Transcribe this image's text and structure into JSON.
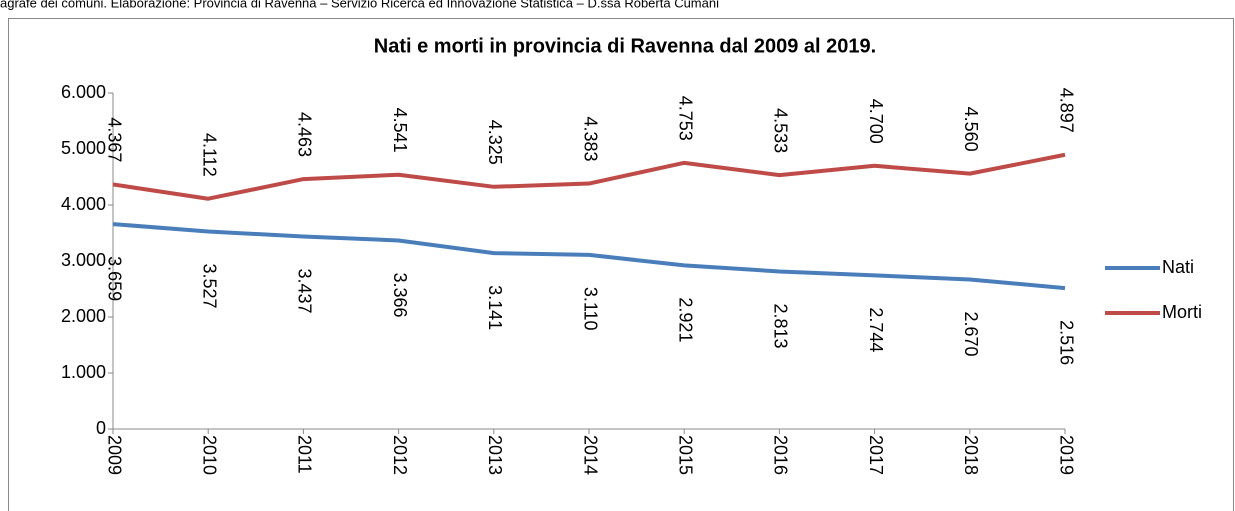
{
  "chart_data": {
    "type": "line",
    "source": "agrafe dei comuni. Elaborazione: Provincia di Ravenna – Servizio Ricerca ed Innovazione Statistica – D.ssa Roberta Cumani",
    "title": "Nati e morti in provincia di Ravenna dal 2009 al 2019.",
    "categories": [
      "2009",
      "2010",
      "2011",
      "2012",
      "2013",
      "2014",
      "2015",
      "2016",
      "2017",
      "2018",
      "2019"
    ],
    "series": [
      {
        "name": "Nati",
        "color": "#4a7ebb",
        "values": [
          3659,
          3527,
          3437,
          3366,
          3141,
          3110,
          2921,
          2813,
          2744,
          2670,
          2516
        ],
        "value_labels": [
          "3.659",
          "3.527",
          "3.437",
          "3.366",
          "3.141",
          "3.110",
          "2.921",
          "2.813",
          "2.744",
          "2.670",
          "2.516"
        ]
      },
      {
        "name": "Morti",
        "color": "#be4b48",
        "values": [
          4367,
          4112,
          4463,
          4541,
          4325,
          4383,
          4753,
          4533,
          4700,
          4560,
          4897
        ],
        "value_labels": [
          "4.367",
          "4.112",
          "4.463",
          "4.541",
          "4.325",
          "4.383",
          "4.753",
          "4.533",
          "4.700",
          "4.560",
          "4.897"
        ]
      }
    ],
    "ylim": [
      0,
      6000
    ],
    "yticks": [
      0,
      {
        "value": 1000,
        "label": "1.000"
      },
      {
        "value": 2000,
        "label": "2.000"
      },
      {
        "value": 3000,
        "label": "3.000"
      },
      {
        "value": 4000,
        "label": "4.000"
      },
      {
        "value": 5000,
        "label": "5.000"
      },
      {
        "value": 6000,
        "label": "6.000"
      }
    ],
    "legend": "right"
  }
}
